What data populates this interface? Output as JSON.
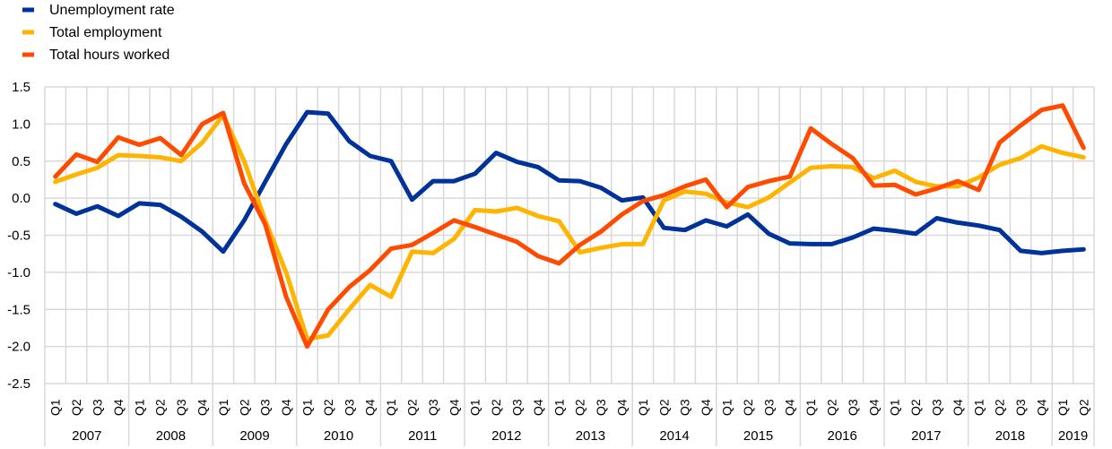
{
  "chart_data": {
    "type": "line",
    "title": "",
    "xlabel": "",
    "ylabel": "",
    "ylim": [
      -2.5,
      1.5
    ],
    "yticks": [
      "1.5",
      "1.0",
      "0.5",
      "0.0",
      "-0.5",
      "-1.0",
      "-1.5",
      "-2.0",
      "-2.5"
    ],
    "grid": true,
    "legend_position": "top-left",
    "quarters": [
      "Q1",
      "Q2",
      "Q3",
      "Q4"
    ],
    "years": [
      "2007",
      "2008",
      "2009",
      "2010",
      "2011",
      "2012",
      "2013",
      "2014",
      "2015",
      "2016",
      "2017",
      "2018",
      "2019"
    ],
    "last_year_quarters": 2,
    "series": [
      {
        "name": "Unemployment rate",
        "color": "#003299",
        "values": [
          -0.08,
          -0.21,
          -0.11,
          -0.24,
          -0.07,
          -0.09,
          -0.25,
          -0.45,
          -0.72,
          -0.3,
          0.22,
          0.73,
          1.16,
          1.14,
          0.77,
          0.57,
          0.5,
          -0.02,
          0.23,
          0.23,
          0.33,
          0.61,
          0.49,
          0.42,
          0.24,
          0.23,
          0.14,
          -0.03,
          0.01,
          -0.4,
          -0.43,
          -0.3,
          -0.38,
          -0.22,
          -0.48,
          -0.61,
          -0.62,
          -0.62,
          -0.53,
          -0.41,
          -0.44,
          -0.48,
          -0.27,
          -0.33,
          -0.37,
          -0.43,
          -0.71,
          -0.74,
          -0.71,
          -0.69
        ]
      },
      {
        "name": "Total employment",
        "color": "#FFB400",
        "values": [
          0.22,
          0.32,
          0.41,
          0.58,
          0.57,
          0.55,
          0.5,
          0.75,
          1.12,
          0.5,
          -0.3,
          -1.0,
          -1.9,
          -1.85,
          -1.5,
          -1.17,
          -1.33,
          -0.72,
          -0.74,
          -0.55,
          -0.16,
          -0.18,
          -0.13,
          -0.24,
          -0.31,
          -0.73,
          -0.67,
          -0.62,
          -0.62,
          -0.03,
          0.09,
          0.06,
          -0.06,
          -0.12,
          0.01,
          0.21,
          0.41,
          0.43,
          0.42,
          0.27,
          0.37,
          0.22,
          0.16,
          0.16,
          0.28,
          0.45,
          0.54,
          0.7,
          0.61,
          0.55
        ]
      },
      {
        "name": "Total hours worked",
        "color": "#FF4B00",
        "values": [
          0.29,
          0.59,
          0.49,
          0.82,
          0.72,
          0.81,
          0.58,
          1.0,
          1.15,
          0.2,
          -0.35,
          -1.33,
          -2.0,
          -1.5,
          -1.2,
          -0.97,
          -0.68,
          -0.63,
          -0.47,
          -0.3,
          -0.39,
          -0.49,
          -0.59,
          -0.78,
          -0.88,
          -0.63,
          -0.45,
          -0.22,
          -0.04,
          0.04,
          0.16,
          0.25,
          -0.12,
          0.15,
          0.23,
          0.29,
          0.94,
          0.73,
          0.54,
          0.17,
          0.18,
          0.05,
          0.13,
          0.23,
          0.11,
          0.75,
          0.98,
          1.19,
          1.25,
          0.68
        ]
      }
    ]
  }
}
